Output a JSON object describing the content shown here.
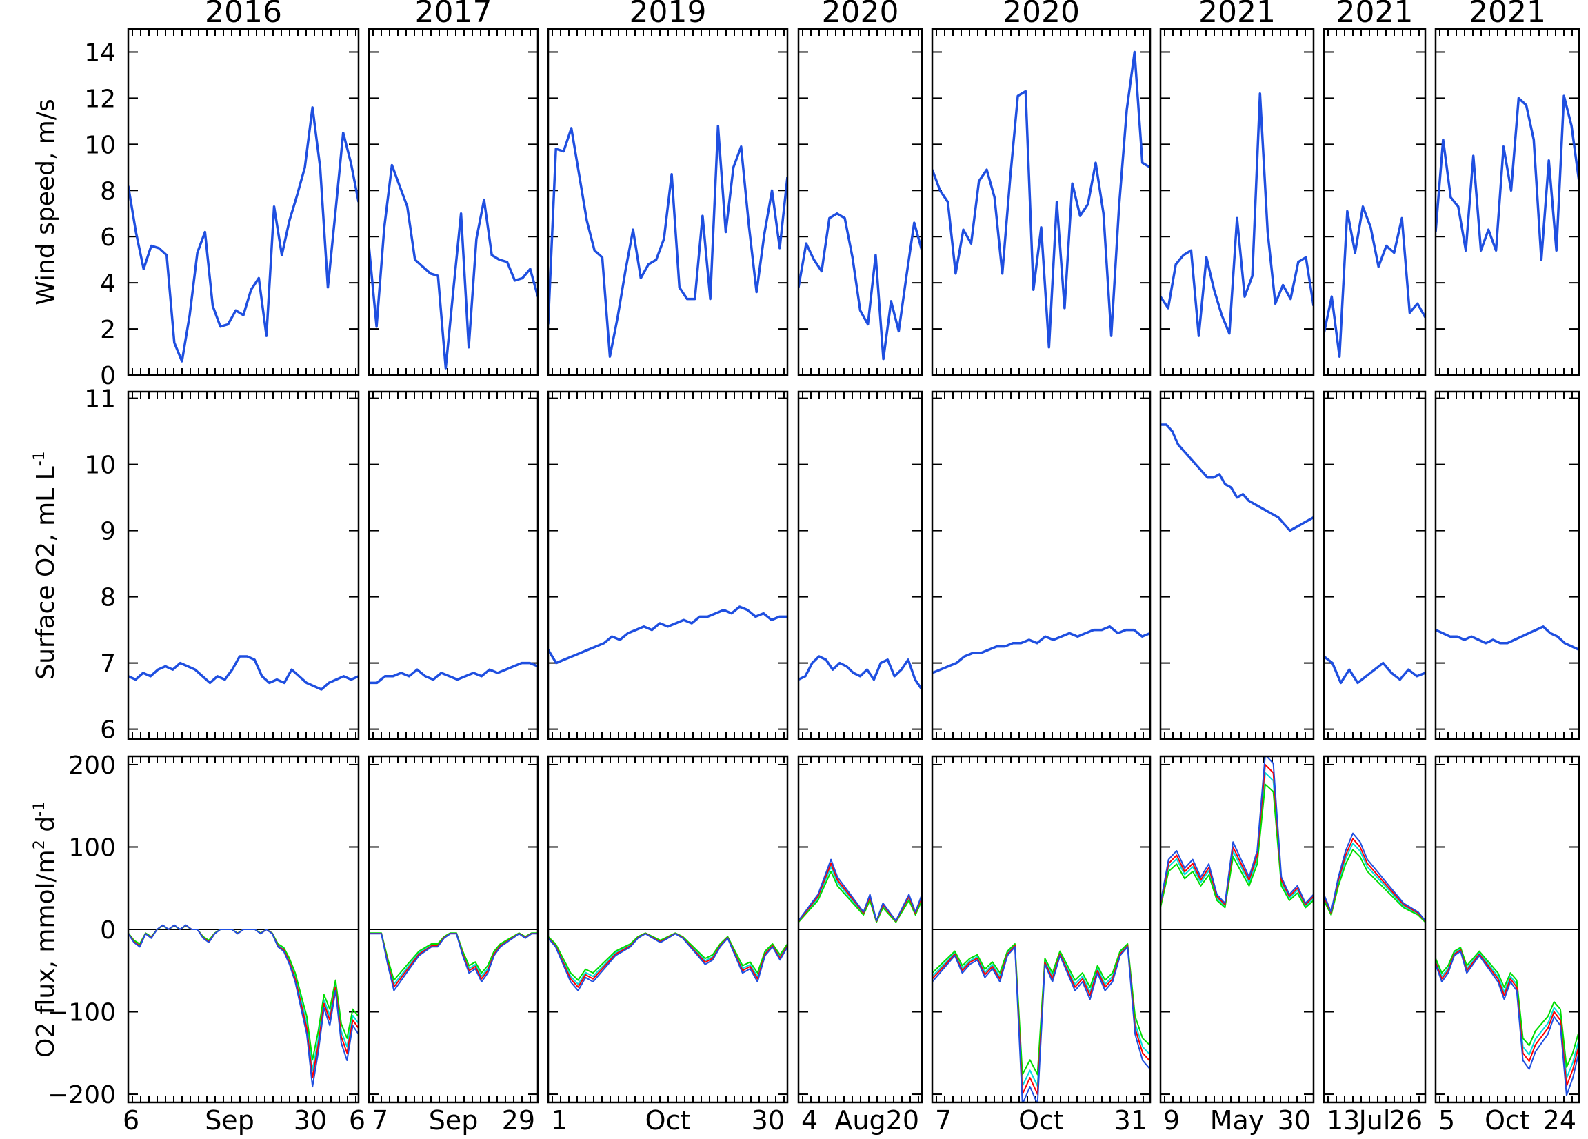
{
  "chart_data": {
    "type": "line",
    "layout": "3 rows x 8 columns of small multiples with shared row y-axes",
    "panel_titles": [
      "2016",
      "2017",
      "2019",
      "2020",
      "2020",
      "2021",
      "2021",
      "2021"
    ],
    "x_tick_labels": [
      [
        "6",
        "Sep",
        "30",
        "6"
      ],
      [
        "7",
        "Sep",
        "29"
      ],
      [
        "1",
        "Oct",
        "30"
      ],
      [
        "4",
        "Aug",
        "20"
      ],
      [
        "7",
        "Oct",
        "31"
      ],
      [
        "9",
        "May",
        "30"
      ],
      [
        "13",
        "Jul",
        "26"
      ],
      [
        "5",
        "Oct",
        "24"
      ]
    ],
    "rows": [
      {
        "ylabel": "Wind speed, m/s",
        "ylim": [
          0,
          15
        ],
        "yticks": [
          0,
          2,
          4,
          6,
          8,
          10,
          12,
          14
        ],
        "colors": [
          "#1f4fe0"
        ],
        "panels": [
          [
            8.2,
            6.2,
            4.6,
            5.6,
            5.5,
            5.2,
            1.4,
            0.6,
            2.6,
            5.3,
            6.2,
            3.0,
            2.1,
            2.2,
            2.8,
            2.6,
            3.7,
            4.2,
            1.7,
            7.3,
            5.2,
            6.7,
            7.8,
            9.0,
            11.6,
            9.0,
            3.8,
            7.1,
            10.5,
            9.2,
            7.5
          ],
          [
            5.6,
            2.1,
            6.4,
            9.1,
            8.2,
            7.3,
            5.0,
            4.7,
            4.4,
            4.3,
            0.3,
            3.7,
            7.0,
            1.2,
            5.9,
            7.6,
            5.2,
            5.0,
            4.9,
            4.1,
            4.2,
            4.6,
            3.4
          ],
          [
            2.2,
            9.8,
            9.7,
            10.7,
            8.7,
            6.7,
            5.4,
            5.1,
            0.8,
            2.5,
            4.5,
            6.3,
            4.2,
            4.8,
            5.0,
            5.9,
            8.7,
            3.8,
            3.3,
            3.3,
            6.9,
            3.3,
            10.8,
            6.2,
            9.0,
            9.9,
            6.5,
            3.6,
            6.1,
            8.0,
            5.5,
            8.6
          ],
          [
            3.8,
            5.7,
            5.0,
            4.5,
            6.8,
            7.0,
            6.8,
            5.1,
            2.8,
            2.2,
            5.2,
            0.7,
            3.2,
            1.9,
            4.3,
            6.6,
            5.4
          ],
          [
            8.9,
            8.0,
            7.5,
            4.4,
            6.3,
            5.7,
            8.4,
            8.9,
            7.7,
            4.4,
            8.5,
            12.1,
            12.3,
            3.7,
            6.4,
            1.2,
            7.5,
            2.9,
            8.3,
            6.9,
            7.4,
            9.2,
            7.0,
            1.7,
            7.3,
            11.5,
            14.0,
            9.2,
            9.0
          ],
          [
            3.4,
            2.9,
            4.8,
            5.2,
            5.4,
            1.7,
            5.1,
            3.7,
            2.6,
            1.8,
            6.8,
            3.4,
            4.3,
            12.2,
            6.2,
            3.1,
            3.9,
            3.3,
            4.9,
            5.1,
            3.0
          ],
          [
            1.8,
            3.4,
            0.8,
            7.1,
            5.3,
            7.3,
            6.4,
            4.7,
            5.6,
            5.3,
            6.8,
            2.7,
            3.1,
            2.5
          ],
          [
            6.2,
            10.2,
            7.7,
            7.3,
            5.4,
            9.5,
            5.4,
            6.3,
            5.4,
            9.9,
            8.0,
            12.0,
            11.7,
            10.2,
            5.0,
            9.3,
            5.4,
            12.1,
            10.8,
            8.4
          ]
        ]
      },
      {
        "ylabel": "Surface O2, mL L",
        "ylabel_superscript": "-1",
        "ylim": [
          5.85,
          11.1
        ],
        "yticks": [
          6,
          7,
          8,
          9,
          10,
          11
        ],
        "colors": [
          "#1f4fe0"
        ],
        "panels": [
          [
            6.8,
            6.75,
            6.85,
            6.8,
            6.9,
            6.95,
            6.9,
            7.0,
            6.95,
            6.9,
            6.8,
            6.7,
            6.8,
            6.75,
            6.9,
            7.1,
            7.1,
            7.05,
            6.8,
            6.7,
            6.75,
            6.7,
            6.9,
            6.8,
            6.7,
            6.65,
            6.6,
            6.7,
            6.75,
            6.8,
            6.75,
            6.8
          ],
          [
            6.7,
            6.7,
            6.8,
            6.8,
            6.85,
            6.8,
            6.9,
            6.8,
            6.75,
            6.85,
            6.8,
            6.75,
            6.8,
            6.85,
            6.8,
            6.9,
            6.85,
            6.9,
            6.95,
            7.0,
            7.0,
            6.95
          ],
          [
            7.2,
            7.0,
            7.05,
            7.1,
            7.15,
            7.2,
            7.25,
            7.3,
            7.4,
            7.35,
            7.45,
            7.5,
            7.55,
            7.5,
            7.6,
            7.55,
            7.6,
            7.65,
            7.6,
            7.7,
            7.7,
            7.75,
            7.8,
            7.75,
            7.85,
            7.8,
            7.7,
            7.75,
            7.65,
            7.7,
            7.7
          ],
          [
            6.75,
            6.8,
            7.0,
            7.1,
            7.05,
            6.9,
            7.0,
            6.95,
            6.85,
            6.8,
            6.9,
            6.75,
            7.0,
            7.05,
            6.8,
            6.9,
            7.05,
            6.75,
            6.6
          ],
          [
            6.85,
            6.9,
            6.95,
            7.0,
            7.1,
            7.15,
            7.15,
            7.2,
            7.25,
            7.25,
            7.3,
            7.3,
            7.35,
            7.3,
            7.4,
            7.35,
            7.4,
            7.45,
            7.4,
            7.45,
            7.5,
            7.5,
            7.55,
            7.45,
            7.5,
            7.5,
            7.4,
            7.45
          ],
          [
            10.6,
            10.6,
            10.5,
            10.3,
            10.2,
            10.1,
            10.0,
            9.9,
            9.8,
            9.8,
            9.85,
            9.7,
            9.65,
            9.5,
            9.55,
            9.45,
            9.4,
            9.35,
            9.3,
            9.25,
            9.2,
            9.1,
            9.0,
            9.05,
            9.1,
            9.15,
            9.2
          ],
          [
            7.1,
            7.0,
            6.7,
            6.9,
            6.7,
            6.8,
            6.9,
            7.0,
            6.85,
            6.75,
            6.9,
            6.8,
            6.85
          ],
          [
            7.5,
            7.45,
            7.4,
            7.4,
            7.35,
            7.4,
            7.35,
            7.3,
            7.35,
            7.3,
            7.3,
            7.35,
            7.4,
            7.45,
            7.5,
            7.55,
            7.45,
            7.4,
            7.3,
            7.25,
            7.2
          ]
        ]
      },
      {
        "ylabel": "O2 flux, mmol/m",
        "ylabel_superscript": [
          "2",
          "-1"
        ],
        "ylabel_tail": "d",
        "ylim": [
          -210,
          210
        ],
        "yticks": [
          -200,
          -100,
          0,
          100,
          200
        ],
        "ytick_labels": [
          "−200",
          "−100",
          "0",
          "100",
          "200"
        ],
        "colors": [
          "#1f4fe0",
          "#ff0000",
          "#00dd00",
          "#00dddd"
        ],
        "zero_line": true,
        "panels": [
          [
            -5,
            -15,
            -20,
            -5,
            -10,
            0,
            5,
            0,
            5,
            0,
            5,
            0,
            0,
            -10,
            -15,
            -5,
            0,
            0,
            0,
            -5,
            0,
            0,
            0,
            -5,
            0,
            -5,
            -20,
            -25,
            -40,
            -60,
            -90,
            -120,
            -180,
            -140,
            -90,
            -110,
            -70,
            -130,
            -150,
            -110,
            -120
          ],
          [
            -5,
            -5,
            -5,
            -40,
            -70,
            -60,
            -50,
            -40,
            -30,
            -25,
            -20,
            -20,
            -10,
            -5,
            -5,
            -30,
            -50,
            -45,
            -60,
            -50,
            -30,
            -20,
            -15,
            -10,
            -5,
            -10,
            -5,
            -5
          ],
          [
            -10,
            -20,
            -40,
            -60,
            -70,
            -55,
            -60,
            -50,
            -40,
            -30,
            -25,
            -20,
            -10,
            -5,
            -10,
            -15,
            -10,
            -5,
            -10,
            -20,
            -30,
            -40,
            -35,
            -20,
            -10,
            -30,
            -50,
            -45,
            -60,
            -30,
            -20,
            -35,
            -20
          ],
          [
            10,
            20,
            30,
            40,
            60,
            80,
            60,
            50,
            40,
            30,
            20,
            40,
            10,
            30,
            20,
            10,
            25,
            40,
            20,
            40
          ],
          [
            -60,
            -50,
            -40,
            -30,
            -50,
            -40,
            -35,
            -55,
            -45,
            -60,
            -30,
            -20,
            -200,
            -180,
            -200,
            -40,
            -60,
            -30,
            -50,
            -70,
            -60,
            -80,
            -50,
            -70,
            -60,
            -30,
            -20,
            -120,
            -150,
            -160
          ],
          [
            30,
            80,
            90,
            70,
            80,
            60,
            75,
            40,
            30,
            100,
            80,
            60,
            90,
            200,
            190,
            60,
            40,
            50,
            30,
            40
          ],
          [
            40,
            20,
            60,
            90,
            110,
            100,
            80,
            70,
            60,
            50,
            40,
            30,
            25,
            20,
            10
          ],
          [
            -40,
            -60,
            -50,
            -30,
            -25,
            -50,
            -40,
            -30,
            -40,
            -50,
            -60,
            -80,
            -60,
            -70,
            -150,
            -160,
            -140,
            -130,
            -120,
            -100,
            -110,
            -190,
            -170,
            -140
          ]
        ]
      }
    ]
  }
}
